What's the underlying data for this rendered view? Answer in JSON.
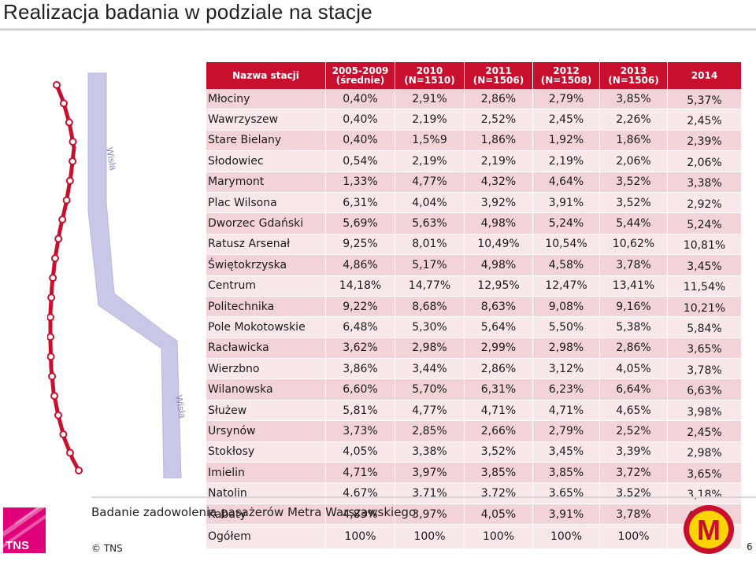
{
  "title": "Realizacja badania w podziale na stacje",
  "map": {
    "river_label_top": "Wisła",
    "river_label_bottom": "Wisła"
  },
  "table": {
    "headers": [
      {
        "line1": "Nazwa stacji",
        "line2": ""
      },
      {
        "line1": "2005-2009",
        "line2": "(średnie)"
      },
      {
        "line1": "2010",
        "line2": "(N=1510)"
      },
      {
        "line1": "2011",
        "line2": "(N=1506)"
      },
      {
        "line1": "2012",
        "line2": "(N=1508)"
      },
      {
        "line1": "2013",
        "line2": "(N=1506)"
      },
      {
        "line1": "2014",
        "line2": ""
      }
    ],
    "rows": [
      [
        "Młociny",
        "0,40%",
        "2,91%",
        "2,86%",
        "2,79%",
        "3,85%",
        "5,37%"
      ],
      [
        "Wawrzyszew",
        "0,40%",
        "2,19%",
        "2,52%",
        "2,45%",
        "2,26%",
        "2,45%"
      ],
      [
        "Stare Bielany",
        "0,40%",
        "1,5%9",
        "1,86%",
        "1,92%",
        "1,86%",
        "2,39%"
      ],
      [
        "Słodowiec",
        "0,54%",
        "2,19%",
        "2,19%",
        "2,19%",
        "2,06%",
        "2,06%"
      ],
      [
        "Marymont",
        "1,33%",
        "4,77%",
        "4,32%",
        "4,64%",
        "3,52%",
        "3,38%"
      ],
      [
        "Plac Wilsona",
        "6,31%",
        "4,04%",
        "3,92%",
        "3,91%",
        "3,52%",
        "2,92%"
      ],
      [
        "Dworzec Gdański",
        "5,69%",
        "5,63%",
        "4,98%",
        "5,24%",
        "5,44%",
        "5,24%"
      ],
      [
        "Ratusz Arsenał",
        "9,25%",
        "8,01%",
        "10,49%",
        "10,54%",
        "10,62%",
        "10,81%"
      ],
      [
        "Świętokrzyska",
        "4,86%",
        "5,17%",
        "4,98%",
        "4,58%",
        "3,78%",
        "3,45%"
      ],
      [
        "Centrum",
        "14,18%",
        "14,77%",
        "12,95%",
        "12,47%",
        "13,41%",
        "11,54%"
      ],
      [
        "Politechnika",
        "9,22%",
        "8,68%",
        "8,63%",
        "9,08%",
        "9,16%",
        "10,21%"
      ],
      [
        "Pole Mokotowskie",
        "6,48%",
        "5,30%",
        "5,64%",
        "5,50%",
        "5,38%",
        "5,84%"
      ],
      [
        "Racławicka",
        "3,62%",
        "2,98%",
        "2,99%",
        "2,98%",
        "2,86%",
        "3,65%"
      ],
      [
        "Wierzbno",
        "3,86%",
        "3,44%",
        "2,86%",
        "3,12%",
        "4,05%",
        "3,78%"
      ],
      [
        "Wilanowska",
        "6,60%",
        "5,70%",
        "6,31%",
        "6,23%",
        "6,64%",
        "6,63%"
      ],
      [
        "Służew",
        "5,81%",
        "4,77%",
        "4,71%",
        "4,71%",
        "4,65%",
        "3,98%"
      ],
      [
        "Ursynów",
        "3,73%",
        "2,85%",
        "2,66%",
        "2,79%",
        "2,52%",
        "2,45%"
      ],
      [
        "Stokłosy",
        "4,05%",
        "3,38%",
        "3,52%",
        "3,45%",
        "3,39%",
        "2,98%"
      ],
      [
        "Imielin",
        "4,71%",
        "3,97%",
        "3,85%",
        "3,85%",
        "3,72%",
        "3,65%"
      ],
      [
        "Natolin",
        "4,67%",
        "3,71%",
        "3,72%",
        "3,65%",
        "3,52%",
        "3,18%"
      ],
      [
        "Kabaty",
        "4,83%",
        "3,97%",
        "4,05%",
        "3,91%",
        "3,78%",
        "4,05%"
      ],
      [
        "Ogółem",
        "100%",
        "100%",
        "100%",
        "100%",
        "100%",
        "100%"
      ]
    ]
  },
  "footer": {
    "study_name": "Badanie zadowolenia pasażerów Metra Warszawskiego",
    "copyright": "© TNS",
    "page_number": "6",
    "tns_logo_text": "TNS",
    "metro_logo_letter": "M"
  },
  "colors": {
    "header_red": "#c8102e",
    "row_dark": "#f2d3d8",
    "row_light": "#f8e8ea",
    "river": "#c9c8e8",
    "metro_line": "#c8102e",
    "tns_magenta": "#e0007a",
    "metro_logo_yellow": "#ffd400"
  }
}
